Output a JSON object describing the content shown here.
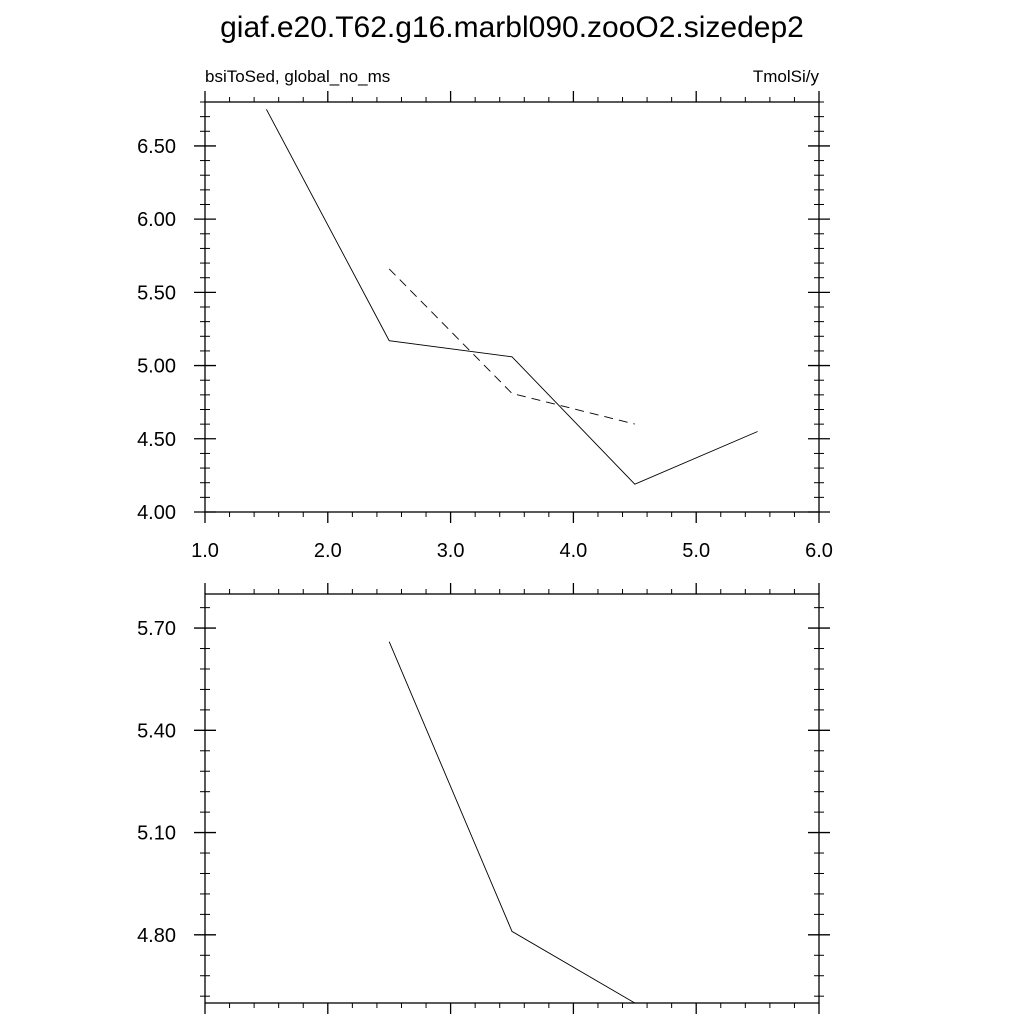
{
  "figure_title": "giaf.e20.T62.g16.marbl090.zooO2.sizedep2",
  "chart_data": [
    {
      "type": "line",
      "left_label": "bsiToSed, global_no_ms",
      "right_label": "TmolSi/y",
      "xlim": [
        1.0,
        6.0
      ],
      "ylim": [
        4.0,
        6.8
      ],
      "x_ticks": [
        1.0,
        2.0,
        3.0,
        4.0,
        5.0,
        6.0
      ],
      "x_tick_labels": [
        "1.0",
        "2.0",
        "3.0",
        "4.0",
        "5.0",
        "6.0"
      ],
      "y_ticks": [
        4.0,
        4.5,
        5.0,
        5.5,
        6.0,
        6.5
      ],
      "y_tick_labels": [
        "4.00",
        "4.50",
        "5.00",
        "5.50",
        "6.00",
        "6.50"
      ],
      "grid": false,
      "series": [
        {
          "style": "solid",
          "color": "#000000",
          "x": [
            1.5,
            2.5,
            3.5,
            4.5,
            5.5
          ],
          "y": [
            6.75,
            5.17,
            5.06,
            4.19,
            4.55
          ]
        },
        {
          "style": "dashed",
          "color": "#000000",
          "x": [
            2.5,
            3.5,
            4.5
          ],
          "y": [
            5.66,
            4.81,
            4.6
          ]
        }
      ]
    },
    {
      "type": "line",
      "xlim": [
        1.0,
        6.0
      ],
      "ylim": [
        4.6,
        5.8
      ],
      "x_ticks": [
        1.0,
        2.0,
        3.0,
        4.0,
        5.0,
        6.0
      ],
      "x_tick_labels": [],
      "y_ticks": [
        4.8,
        5.1,
        5.4,
        5.7
      ],
      "y_tick_labels": [
        "4.80",
        "5.10",
        "5.40",
        "5.70"
      ],
      "grid": false,
      "series": [
        {
          "style": "solid",
          "color": "#000000",
          "x": [
            2.5,
            3.5,
            4.5
          ],
          "y": [
            5.66,
            4.81,
            4.6
          ]
        }
      ]
    }
  ]
}
